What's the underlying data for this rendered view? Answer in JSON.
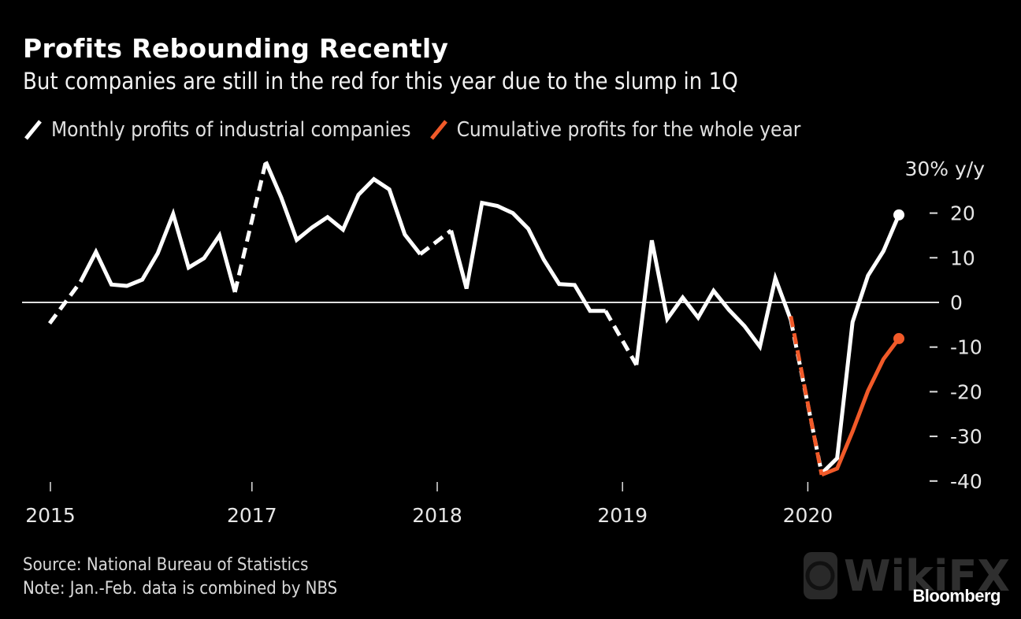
{
  "title": "Profits Rebounding Recently",
  "subtitle": "But companies are still in the red for this year due to the slump in 1Q",
  "legend": [
    {
      "label": "Monthly profits of industrial companies",
      "color": "#ffffff"
    },
    {
      "label": "Cumulative profits for the whole year",
      "color": "#f15a29"
    }
  ],
  "footer": {
    "source": "Source: National Bureau of Statistics",
    "note": "Note: Jan.-Feb. data is combined by NBS"
  },
  "brand": "Bloomberg",
  "watermark": "WikiFX",
  "chart_data": {
    "type": "line",
    "title": "Profits Rebounding Recently",
    "subtitle": "But companies are still in the red for this year due to the slump in 1Q",
    "xlabel": "",
    "ylabel": "% y/y",
    "y_unit_label": "30% y/y",
    "ylim": [
      -40,
      30
    ],
    "yticks": [
      30,
      20,
      10,
      0,
      -10,
      -20,
      -30,
      -40
    ],
    "ytick_labels": [
      "30% y/y",
      "20",
      "10",
      "0",
      "-10",
      "-20",
      "-30",
      "-40"
    ],
    "xtick_labels": [
      {
        "label": "2015",
        "index": 0
      },
      {
        "label": "2017",
        "index": 13
      },
      {
        "label": "2018",
        "index": 25
      },
      {
        "label": "2019",
        "index": 37
      },
      {
        "label": "2020",
        "index": 49
      }
    ],
    "x_count": 56,
    "grid": false,
    "zero_line": true,
    "legend_position": "top-left",
    "series": [
      {
        "name": "Monthly profits of industrial companies",
        "color": "#ffffff",
        "dashed_gaps": [
          1,
          13,
          25,
          37,
          49
        ],
        "end_marker": true,
        "values": [
          -4.7,
          null,
          4.6,
          11.3,
          4.0,
          3.7,
          5.1,
          11.0,
          19.8,
          7.8,
          9.9,
          15.0,
          2.3,
          null,
          31.5,
          23.5,
          14.0,
          16.8,
          19.1,
          16.3,
          24.1,
          27.6,
          25.3,
          15.2,
          10.8,
          null,
          16.1,
          3.1,
          22.3,
          21.6,
          20.0,
          16.5,
          9.6,
          4.1,
          3.9,
          -1.9,
          -1.9,
          null,
          -14.0,
          13.9,
          -3.7,
          1.1,
          -3.4,
          2.6,
          -1.7,
          -5.3,
          -9.9,
          5.4,
          -3.9,
          null,
          -38.3,
          -34.9,
          -4.4,
          6.0,
          11.5,
          19.6
        ]
      },
      {
        "name": "Cumulative profits for the whole year",
        "color": "#f15a29",
        "dashed_gaps": [
          49
        ],
        "end_marker": true,
        "start_index": 48,
        "values": [
          -3.1,
          null,
          -38.6,
          -37.2,
          -28.9,
          -19.8,
          -12.7,
          -8.1
        ]
      }
    ]
  }
}
